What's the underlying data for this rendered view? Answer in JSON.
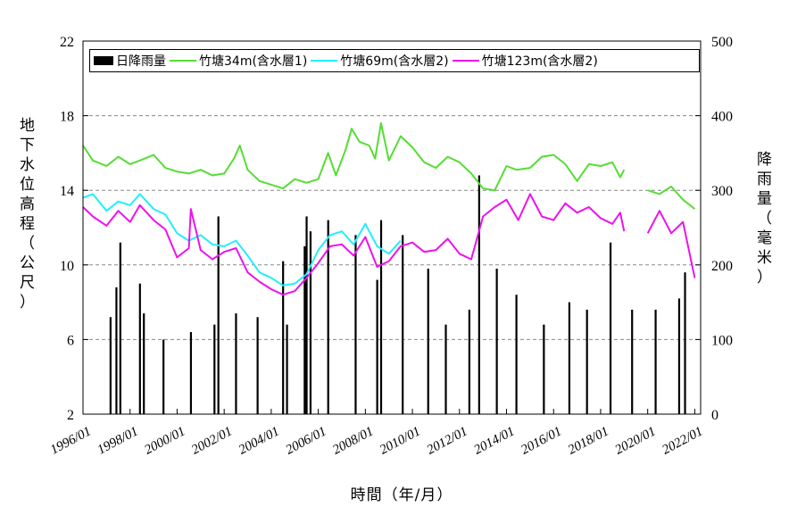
{
  "chart_data": {
    "type": "line",
    "xlabel": "時間（年/月）",
    "ylabel": "地下水位高程（公尺）",
    "y2label": "降雨量（毫米）",
    "x_ticks": [
      "1996/01",
      "1998/01",
      "2000/01",
      "2002/01",
      "2004/01",
      "2006/01",
      "2008/01",
      "2010/01",
      "2012/01",
      "2014/01",
      "2016/01",
      "2018/01",
      "2020/01",
      "2022/01"
    ],
    "ylim": [
      2,
      22
    ],
    "y_ticks": [
      2,
      6,
      10,
      14,
      18,
      22
    ],
    "y2lim": [
      0,
      500
    ],
    "y2_ticks": [
      0,
      100,
      200,
      300,
      400,
      500
    ],
    "grid": "horizontal-dashed",
    "legend": "top",
    "series": [
      {
        "name": "日降雨量",
        "axis": "right",
        "kind": "bar",
        "x": [
          "1997/03",
          "1997/06",
          "1997/08",
          "1998/06",
          "1998/08",
          "1999/06",
          "2000/08",
          "2001/08",
          "2001/10",
          "2002/07",
          "2003/06",
          "2004/07",
          "2004/09",
          "2005/06",
          "2005/07",
          "2005/09",
          "2006/06",
          "2007/08",
          "2008/07",
          "2008/09",
          "2009/08",
          "2010/09",
          "2011/06",
          "2012/06",
          "2012/11",
          "2013/08",
          "2014/06",
          "2015/08",
          "2016/09",
          "2017/06",
          "2018/06",
          "2019/05",
          "2020/05",
          "2021/05",
          "2021/08"
        ],
        "values": [
          130,
          170,
          230,
          175,
          135,
          100,
          110,
          120,
          265,
          135,
          130,
          205,
          120,
          225,
          265,
          245,
          260,
          240,
          180,
          260,
          240,
          195,
          120,
          140,
          320,
          195,
          160,
          120,
          150,
          140,
          230,
          140,
          140,
          155,
          190
        ],
        "color": "#000000"
      },
      {
        "name": "竹塘34m(含水層1)",
        "axis": "left",
        "x": [
          "1996/01",
          "1996/06",
          "1997/01",
          "1997/07",
          "1998/01",
          "1998/06",
          "1999/01",
          "1999/07",
          "2000/01",
          "2000/07",
          "2001/01",
          "2001/07",
          "2002/01",
          "2002/06",
          "2002/09",
          "2003/01",
          "2003/07",
          "2004/01",
          "2004/07",
          "2005/01",
          "2005/07",
          "2006/01",
          "2006/06",
          "2006/10",
          "2007/03",
          "2007/06",
          "2007/10",
          "2008/03",
          "2008/06",
          "2008/09",
          "2009/01",
          "2009/07",
          "2010/01",
          "2010/07",
          "2011/01",
          "2011/07",
          "2012/01",
          "2012/07",
          "2013/01",
          "2013/07",
          "2014/01",
          "2014/06",
          "2015/01",
          "2015/07",
          "2016/01",
          "2016/07",
          "2017/01",
          "2017/07",
          "2018/01",
          "2018/07",
          "2018/11",
          "2019/01",
          "2019/07",
          "2020/01",
          "2020/07",
          "2021/01",
          "2021/07",
          "2022/01"
        ],
        "values": [
          16.4,
          15.6,
          15.3,
          15.8,
          15.4,
          15.6,
          15.9,
          15.2,
          15.0,
          14.9,
          15.1,
          14.8,
          14.9,
          15.7,
          16.4,
          15.1,
          14.5,
          14.3,
          14.1,
          14.6,
          14.4,
          14.6,
          16.0,
          14.8,
          16.2,
          17.3,
          16.6,
          16.4,
          15.7,
          17.6,
          15.6,
          16.9,
          16.3,
          15.5,
          15.2,
          15.8,
          15.5,
          14.9,
          14.1,
          14.0,
          15.3,
          15.1,
          15.2,
          15.8,
          15.9,
          15.4,
          14.5,
          15.4,
          15.3,
          15.5,
          14.7,
          15.1,
          null,
          14.0,
          13.8,
          14.2,
          13.5,
          13.0
        ]
      },
      {
        "name": "竹塘69m(含水層2)",
        "axis": "left",
        "x": [
          "1996/01",
          "1996/06",
          "1997/01",
          "1997/07",
          "1998/01",
          "1998/06",
          "1999/01",
          "1999/07",
          "2000/01",
          "2000/07",
          "2001/01",
          "2001/07",
          "2002/01",
          "2002/07",
          "2003/01",
          "2003/07",
          "2004/01",
          "2004/07",
          "2005/01",
          "2005/07",
          "2006/01",
          "2006/07",
          "2007/01",
          "2007/07",
          "2008/01",
          "2008/07",
          "2009/01",
          "2009/07"
        ],
        "values": [
          13.6,
          13.8,
          12.9,
          13.4,
          13.2,
          13.8,
          13.0,
          12.7,
          11.7,
          11.3,
          11.6,
          11.1,
          11.0,
          11.3,
          10.5,
          9.6,
          9.3,
          8.9,
          9.0,
          9.5,
          10.8,
          11.6,
          11.8,
          11.1,
          12.2,
          11.0,
          10.6,
          11.3
        ]
      },
      {
        "name": "竹塘123m(含水層2)",
        "axis": "left",
        "x": [
          "1996/01",
          "1996/06",
          "1997/01",
          "1997/07",
          "1998/01",
          "1998/06",
          "1999/01",
          "1999/07",
          "2000/01",
          "2000/07",
          "2000/08",
          "2001/01",
          "2001/07",
          "2002/01",
          "2002/07",
          "2003/01",
          "2003/07",
          "2004/01",
          "2004/07",
          "2005/01",
          "2005/07",
          "2006/01",
          "2006/07",
          "2007/01",
          "2007/07",
          "2008/01",
          "2008/07",
          "2009/01",
          "2009/07",
          "2010/01",
          "2010/07",
          "2011/01",
          "2011/07",
          "2012/01",
          "2012/07",
          "2013/01",
          "2013/07",
          "2014/01",
          "2014/07",
          "2015/01",
          "2015/07",
          "2016/01",
          "2016/07",
          "2017/01",
          "2017/07",
          "2018/01",
          "2018/07",
          "2018/11",
          "2019/01",
          "2019/07",
          "2020/01",
          "2020/07",
          "2021/01",
          "2021/07",
          "2022/01"
        ],
        "values": [
          13.1,
          12.6,
          12.1,
          12.9,
          12.3,
          13.2,
          12.4,
          11.9,
          10.4,
          10.9,
          13.0,
          10.8,
          10.3,
          10.7,
          10.9,
          9.6,
          9.1,
          8.7,
          8.4,
          8.6,
          9.3,
          10.1,
          11.0,
          11.1,
          10.5,
          11.5,
          9.9,
          10.2,
          11.0,
          11.2,
          10.7,
          10.8,
          11.4,
          10.6,
          10.3,
          12.6,
          13.1,
          13.5,
          12.4,
          13.8,
          12.6,
          12.4,
          13.3,
          12.8,
          13.1,
          12.5,
          12.2,
          12.8,
          11.8,
          null,
          11.7,
          12.9,
          11.7,
          12.3,
          9.3
        ]
      }
    ],
    "colors": {
      "rain": "#000000",
      "s34": "#55dd33",
      "s69": "#22eeff",
      "s123": "#ee11ee",
      "grid": "#888888"
    }
  }
}
